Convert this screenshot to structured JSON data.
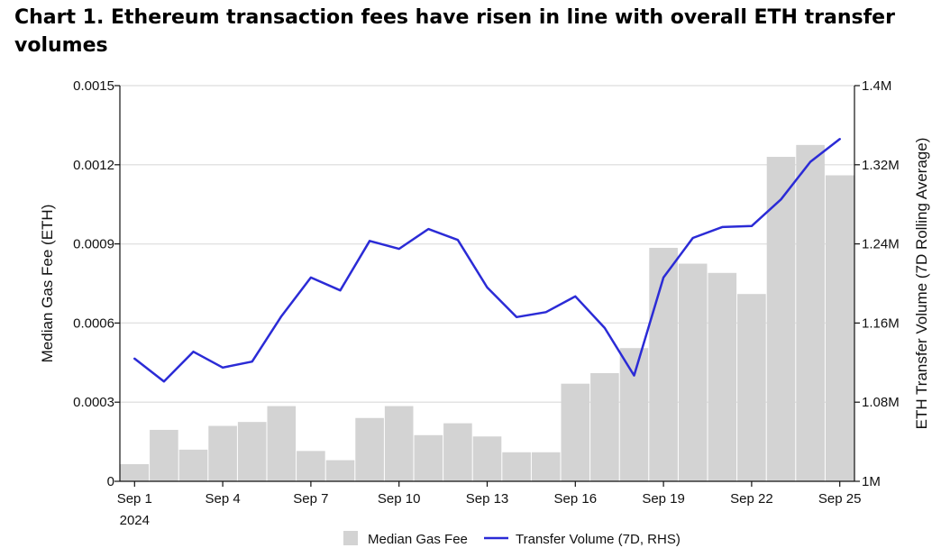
{
  "chart_data": {
    "type": "bar+line",
    "title": "Chart 1. Ethereum transaction fees have risen in line with overall ETH transfer volumes",
    "x": [
      "Sep 1",
      "Sep 2",
      "Sep 3",
      "Sep 4",
      "Sep 5",
      "Sep 6",
      "Sep 7",
      "Sep 8",
      "Sep 9",
      "Sep 10",
      "Sep 11",
      "Sep 12",
      "Sep 13",
      "Sep 14",
      "Sep 15",
      "Sep 16",
      "Sep 17",
      "Sep 18",
      "Sep 19",
      "Sep 20",
      "Sep 21",
      "Sep 22",
      "Sep 23",
      "Sep 24",
      "Sep 25"
    ],
    "x_tick_labels": [
      "Sep 1",
      "Sep 4",
      "Sep 7",
      "Sep 10",
      "Sep 13",
      "Sep 16",
      "Sep 19",
      "Sep 22",
      "Sep 25"
    ],
    "x_year_label": "2024",
    "ylabel_left": "Median Gas Fee (ETH)",
    "ylabel_right": "ETH Transfer Volume (7D Rolling Average)",
    "ylim_left": [
      0,
      0.0015
    ],
    "ylim_right": [
      1000000,
      1400000
    ],
    "y_ticks_left": [
      "0",
      "0.0003",
      "0.0006",
      "0.0009",
      "0.0012",
      "0.0015"
    ],
    "y_ticks_right": [
      "1M",
      "1.08M",
      "1.16M",
      "1.24M",
      "1.32M",
      "1.4M"
    ],
    "grid": true,
    "legend_position": "bottom",
    "series": [
      {
        "name": "Median Gas Fee",
        "kind": "bar",
        "axis": "left",
        "color": "#d3d3d3",
        "values": [
          6.5e-05,
          0.000195,
          0.00012,
          0.00021,
          0.000225,
          0.000285,
          0.000115,
          8e-05,
          0.00024,
          0.000285,
          0.000175,
          0.00022,
          0.00017,
          0.00011,
          0.00011,
          0.00037,
          0.00041,
          0.000505,
          0.000885,
          0.000825,
          0.00079,
          0.00071,
          0.00123,
          0.001275,
          0.00116
        ]
      },
      {
        "name": "Transfer Volume (7D, RHS)",
        "kind": "line",
        "axis": "right",
        "color": "#2b2bd6",
        "values": [
          1124000,
          1101000,
          1131000,
          1115000,
          1121000,
          1167000,
          1206000,
          1193000,
          1243000,
          1235000,
          1255000,
          1244000,
          1196000,
          1166000,
          1171000,
          1187000,
          1155000,
          1107000,
          1206000,
          1246000,
          1257000,
          1258000,
          1285000,
          1323000,
          1346000
        ]
      }
    ]
  }
}
